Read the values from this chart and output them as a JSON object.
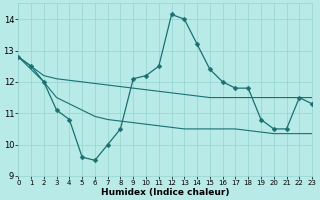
{
  "x": [
    0,
    1,
    2,
    3,
    4,
    5,
    6,
    7,
    8,
    9,
    10,
    11,
    12,
    13,
    14,
    15,
    16,
    17,
    18,
    19,
    20,
    21,
    22,
    23
  ],
  "y_main": [
    12.8,
    12.5,
    12.0,
    11.1,
    10.8,
    9.6,
    9.5,
    10.0,
    10.5,
    12.1,
    12.2,
    12.5,
    14.15,
    14.0,
    13.2,
    12.4,
    12.0,
    11.8,
    11.8,
    10.8,
    10.5,
    10.5,
    11.5,
    11.3
  ],
  "y_upper": [
    12.8,
    12.5,
    12.2,
    12.1,
    12.05,
    12.0,
    11.95,
    11.9,
    11.85,
    11.8,
    11.75,
    11.7,
    11.65,
    11.6,
    11.55,
    11.5,
    11.5,
    11.5,
    11.5,
    11.5,
    11.5,
    11.5,
    11.5,
    11.5
  ],
  "y_lower": [
    12.8,
    12.4,
    12.0,
    11.5,
    11.3,
    11.1,
    10.9,
    10.8,
    10.75,
    10.7,
    10.65,
    10.6,
    10.55,
    10.5,
    10.5,
    10.5,
    10.5,
    10.5,
    10.45,
    10.4,
    10.35,
    10.35,
    10.35,
    10.35
  ],
  "bg_color": "#b8eae8",
  "grid_color": "#96d4d0",
  "line_color": "#1a7070",
  "xlim": [
    0,
    23
  ],
  "ylim": [
    9,
    14.5
  ],
  "yticks": [
    9,
    10,
    11,
    12,
    13,
    14
  ],
  "xticks": [
    0,
    1,
    2,
    3,
    4,
    5,
    6,
    7,
    8,
    9,
    10,
    11,
    12,
    13,
    14,
    15,
    16,
    17,
    18,
    19,
    20,
    21,
    22,
    23
  ],
  "xlabel": "Humidex (Indice chaleur)",
  "markersize": 2.5
}
